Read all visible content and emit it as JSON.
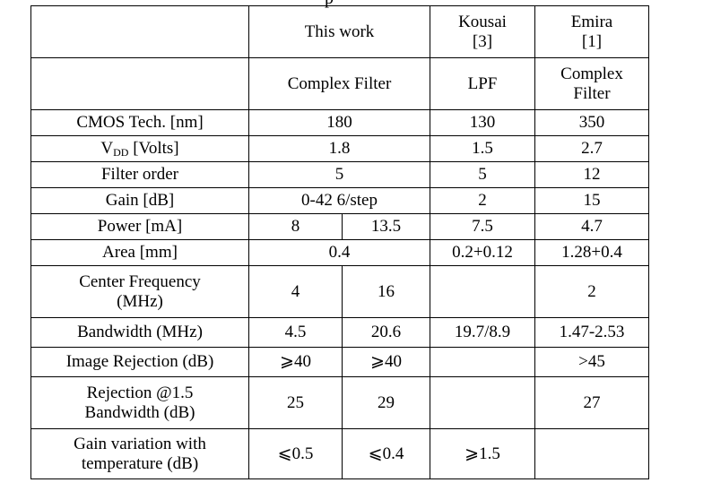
{
  "caption_fragment": "p",
  "header": {
    "this_work": "This work",
    "kousai_name": "Kousai",
    "kousai_ref": "[3]",
    "emira_name": "Emira",
    "emira_ref": "[1]"
  },
  "type_row": {
    "this_work": "Complex Filter",
    "kousai": "LPF",
    "emira_line1": "Complex",
    "emira_line2": "Filter"
  },
  "rows": {
    "cmos": {
      "label": "CMOS Tech. [nm]",
      "this_work": "180",
      "kousai": "130",
      "emira": "350"
    },
    "vdd": {
      "label_main": "V",
      "label_sub": "DD",
      "label_rest": " [Volts]",
      "this_work": "1.8",
      "kousai": "1.5",
      "emira": "2.7"
    },
    "order": {
      "label": "Filter order",
      "this_work": "5",
      "kousai": "5",
      "emira": "12"
    },
    "gain": {
      "label": "Gain [dB]",
      "this_work": "0-42 6/step",
      "kousai": "2",
      "emira": "15"
    },
    "power": {
      "label": "Power [mA]",
      "this_work_a": "8",
      "this_work_b": "13.5",
      "kousai": "7.5",
      "emira": "4.7"
    },
    "area": {
      "label": "Area [mm]",
      "this_work": "0.4",
      "kousai": "0.2+0.12",
      "emira": "1.28+0.4"
    },
    "center": {
      "label_line1": "Center Frequency",
      "label_line2": "(MHz)",
      "this_work_a": "4",
      "this_work_b": "16",
      "kousai": "",
      "emira": "2"
    },
    "bandwidth": {
      "label": "Bandwidth (MHz)",
      "this_work_a": "4.5",
      "this_work_b": "20.6",
      "kousai": "19.7/8.9",
      "emira": "1.47-2.53"
    },
    "image_rejection": {
      "label": "Image Rejection (dB)",
      "this_work_a": "⩾40",
      "this_work_b": "⩾40",
      "kousai": "",
      "emira": ">45"
    },
    "rejection": {
      "label_line1": "Rejection @1.5",
      "label_line2": "Bandwidth (dB)",
      "this_work_a": "25",
      "this_work_b": "29",
      "kousai": "",
      "emira": "27"
    },
    "gain_variation": {
      "label_line1": "Gain variation with",
      "label_line2": "temperature (dB)",
      "this_work_a": "⩽0.5",
      "this_work_b": "⩽0.4",
      "kousai": "⩾1.5",
      "emira": ""
    }
  }
}
